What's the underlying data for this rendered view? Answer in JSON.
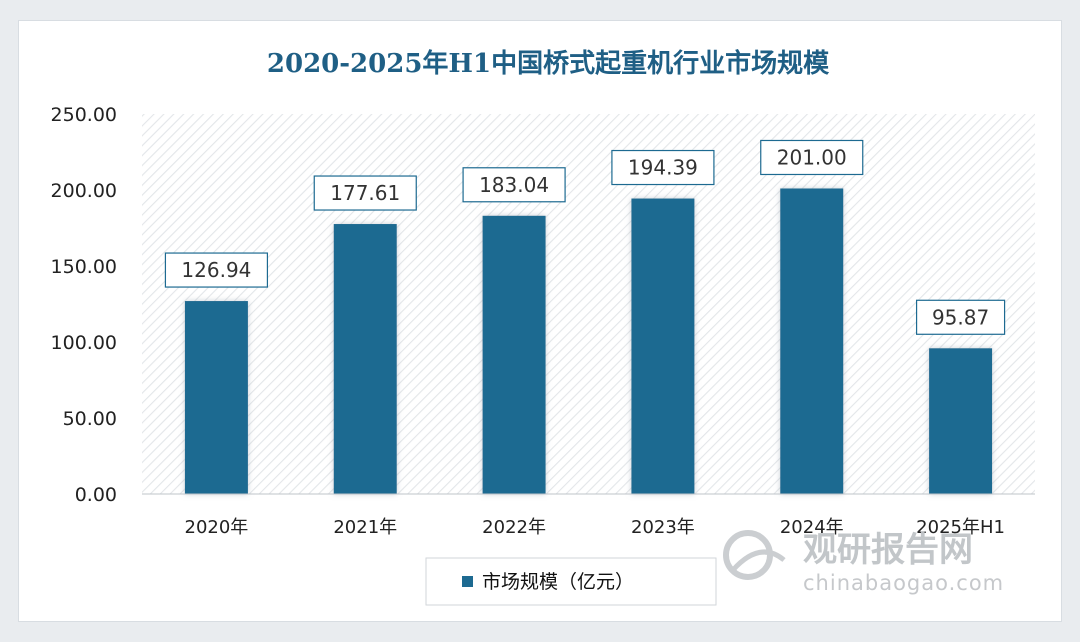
{
  "chart_data": {
    "type": "bar",
    "title": "2020-2025年H1中国桥式起重机行业市场规模",
    "categories": [
      "2020年",
      "2021年",
      "2022年",
      "2023年",
      "2024年",
      "2025年H1"
    ],
    "series": [
      {
        "name": "市场规模（亿元）",
        "values": [
          126.94,
          177.61,
          183.04,
          194.39,
          201.0,
          95.87
        ]
      }
    ],
    "data_labels": [
      "126.94",
      "177.61",
      "183.04",
      "194.39",
      "201.00",
      "95.87"
    ],
    "ylim": [
      0,
      250
    ],
    "yticks": [
      "0.00",
      "50.00",
      "100.00",
      "150.00",
      "200.00",
      "250.00"
    ],
    "xlabel": "",
    "ylabel": "",
    "legend": {
      "label": "市场规模（亿元）",
      "position": "bottom"
    },
    "colors": {
      "bar": "#1d6a91",
      "title": "#1f5f85",
      "label_border": "#1d6a91"
    }
  },
  "watermark": {
    "cn": "观研报告网",
    "en": "chinabaogao.com"
  }
}
